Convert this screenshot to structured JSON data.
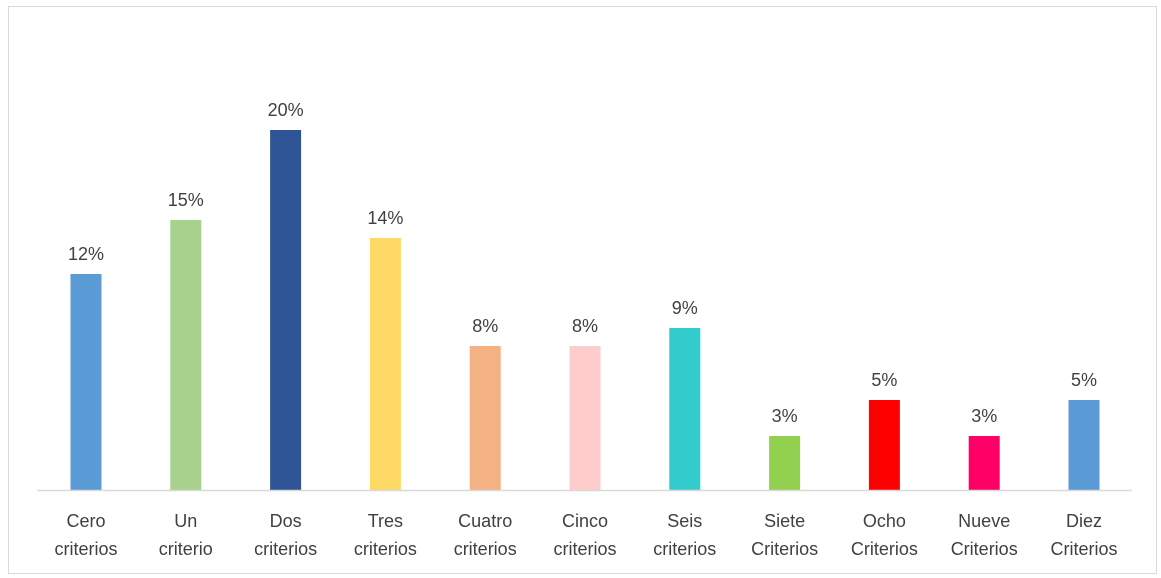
{
  "chart_data": {
    "type": "bar",
    "title": "",
    "xlabel": "",
    "ylabel": "",
    "ylim": [
      0,
      20
    ],
    "grid": false,
    "legend": "none",
    "categories": [
      [
        "Cero",
        "criterios"
      ],
      [
        "Un",
        "criterio"
      ],
      [
        "Dos",
        "criterios"
      ],
      [
        "Tres",
        "criterios"
      ],
      [
        "Cuatro",
        "criterios"
      ],
      [
        "Cinco",
        "criterios"
      ],
      [
        "Seis",
        "criterios"
      ],
      [
        "Siete",
        "Criterios"
      ],
      [
        "Ocho",
        "Criterios"
      ],
      [
        "Nueve",
        "Criterios"
      ],
      [
        "Diez",
        "Criterios"
      ]
    ],
    "values": [
      12,
      15,
      20,
      14,
      8,
      8,
      9,
      3,
      5,
      3,
      5
    ],
    "value_labels": [
      "12%",
      "15%",
      "20%",
      "14%",
      "8%",
      "8%",
      "9%",
      "3%",
      "5%",
      "3%",
      "5%"
    ],
    "colors": [
      "#5b9bd5",
      "#a9d18e",
      "#2f5597",
      "#ffd966",
      "#f4b183",
      "#ffcccc",
      "#33cccc",
      "#92d050",
      "#ff0000",
      "#ff0066",
      "#5b9bd5"
    ],
    "axis_color": "#d9d9d9"
  }
}
